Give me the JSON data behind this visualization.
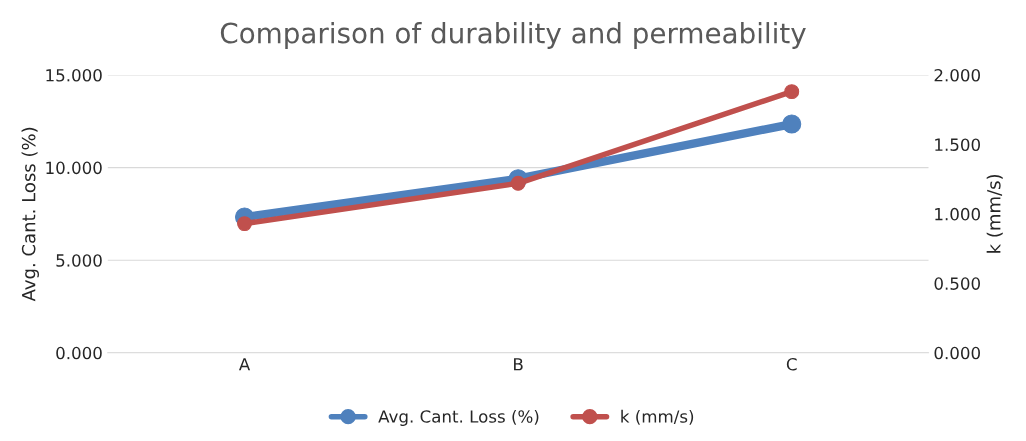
{
  "chart_data": {
    "type": "line",
    "title": "Comparison of durability and permeability",
    "categories": [
      "A",
      "B",
      "C"
    ],
    "ylabel": "Avg. Cant. Loss (%)",
    "y2label": "k (mm/s)",
    "series": [
      {
        "name": "Avg. Cant. Loss (%)",
        "color": "#4f81bd",
        "values": [
          7.33,
          9.4,
          12.35
        ]
      },
      {
        "name": "k (mm/s)",
        "color": "#c0504d",
        "values": [
          0.93,
          1.22,
          1.88
        ],
        "axis": "y2"
      }
    ],
    "ylim": [
      0,
      15
    ],
    "yticks": [
      {
        "value": 0,
        "label": "0.000"
      },
      {
        "value": 5,
        "label": "5.000"
      },
      {
        "value": 10,
        "label": "10.000"
      },
      {
        "value": 15,
        "label": "15.000"
      }
    ],
    "y2lim": [
      0,
      2
    ],
    "y2ticks": [
      {
        "value": 0,
        "label": "0.000"
      },
      {
        "value": 0.5,
        "label": "0.500"
      },
      {
        "value": 1,
        "label": "1.000"
      },
      {
        "value": 1.5,
        "label": "1.500"
      },
      {
        "value": 2,
        "label": "2.000"
      }
    ],
    "grid": "y",
    "legend": "bottom",
    "marker": "circle",
    "line_style": "solid"
  }
}
